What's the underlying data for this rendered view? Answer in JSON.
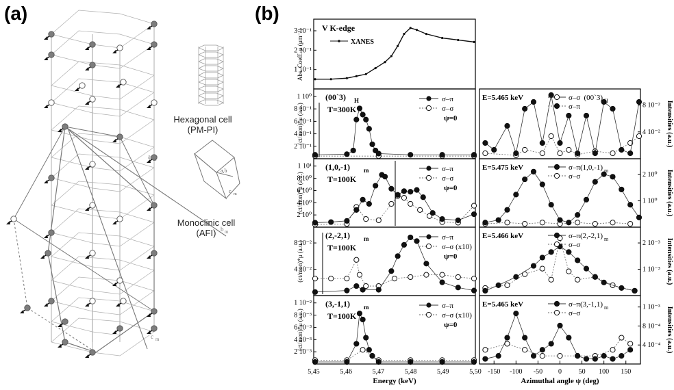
{
  "panel_a": {
    "letter": "(a)",
    "hexagonal_cell_label": [
      "Hexagonal cell",
      "(PM-PI)"
    ],
    "monoclinic_cell_label": [
      "Monoclinic cell",
      "(AFI)"
    ],
    "lattice_labels": {
      "a_m": "a",
      "b_m": "b",
      "c_m": "c",
      "sub": "m",
      "ab": "a,b",
      "cm": "c",
      "sub_m": "m"
    }
  },
  "panel_b": {
    "letter": "(b)",
    "xanes": {
      "title": "V K-edge",
      "legend": "XANES",
      "ylabel": "Abs. Coeff. μ (μm⁻¹)",
      "yticks": [
        "1 10⁻¹",
        "2 10⁻¹",
        "3 10⁻¹"
      ]
    },
    "energy_panels": [
      {
        "reflection": "(00`3)",
        "sub": "H",
        "temp": "T=300K",
        "legend": [
          "σ–π",
          "σ–σ",
          "ψ=0"
        ],
        "yticks": [
          "2 10⁻¹",
          "4 10⁻¹",
          "6 10⁻¹",
          "8 10⁻¹",
          "1 10⁰"
        ]
      },
      {
        "reflection": "(1,0,-1)",
        "sub": "m",
        "temp": "T=100K",
        "legend": [
          "σ–π",
          "σ–σ",
          "ψ=0"
        ],
        "yticks": [
          "2 10⁰",
          "4 10⁰",
          "6 10⁰",
          "8 10⁰",
          "1 10¹"
        ]
      },
      {
        "reflection": "(2,-2,1)",
        "sub": "m",
        "temp": "T=100K",
        "legend": [
          "σ–π",
          "σ–σ (x10)",
          "ψ=0"
        ],
        "yticks": [
          "4 10⁻²",
          "8 10⁻²"
        ]
      },
      {
        "reflection": "(3,-1,1)",
        "sub": "m",
        "temp": "T=100K",
        "legend": [
          "σ–π",
          "σ–σ (x10)",
          "ψ=0"
        ],
        "yticks": [
          "2 10⁻³",
          "4 10⁻³",
          "6 10⁻³",
          "8 10⁻³",
          "1 10⁻²"
        ]
      }
    ],
    "energy_ylabel": "(ct/mon)*μ (a.u.)",
    "energy_xlabel": "Energy (keV)",
    "energy_xticks": [
      "5,45",
      "5,46",
      "5,47",
      "5,48",
      "5,49",
      "5,50"
    ],
    "azimuthal_panels": [
      {
        "energy": "E=5.465 keV",
        "reflection": "(00`3)",
        "sub": "H",
        "legend": [
          "σ–σ",
          "σ–π"
        ],
        "yticks": [
          "4 10⁻²",
          "8 10⁻²"
        ]
      },
      {
        "energy": "E=5.475 keV",
        "reflection": "(1,0,-1)",
        "sub": "m",
        "legend": [
          "σ–π",
          "σ–σ"
        ],
        "yticks": [
          "1 10⁰",
          "2 10⁰"
        ]
      },
      {
        "energy": "E=5.466 keV",
        "reflection": "(2,-2,1)",
        "sub": "m",
        "legend": [
          "σ–π",
          "σ–σ"
        ],
        "yticks": [
          "1 10⁻³",
          "2 10⁻³"
        ]
      },
      {
        "energy": "E=5.465 keV",
        "reflection": "(3,-1,1)",
        "sub": "m",
        "legend": [
          "σ–π",
          "σ–σ"
        ],
        "yticks": [
          "4 10⁻⁴",
          "8 10⁻⁴",
          "1 10⁻³"
        ]
      }
    ],
    "azimuthal_ylabel": "Intensities (a.u.)",
    "azimuthal_xlabel": "Azimuthal angle ψ (deg)",
    "azimuthal_xticks": [
      "-150",
      "-100",
      "-50",
      "0",
      "50",
      "100",
      "150"
    ]
  },
  "chart_data": [
    {
      "type": "line",
      "title": "V K-edge",
      "series": [
        {
          "name": "XANES",
          "x": [
            5.45,
            5.455,
            5.46,
            5.463,
            5.466,
            5.469,
            5.472,
            5.474,
            5.476,
            5.478,
            5.48,
            5.482,
            5.485,
            5.49,
            5.495,
            5.5
          ],
          "y": [
            0.035,
            0.035,
            0.04,
            0.05,
            0.06,
            0.09,
            0.12,
            0.15,
            0.2,
            0.26,
            0.29,
            0.28,
            0.26,
            0.24,
            0.23,
            0.22
          ]
        }
      ],
      "xlim": [
        5.45,
        5.5
      ],
      "ylim": [
        0,
        0.32
      ]
    },
    {
      "type": "scatter",
      "reflection": "(00`3)H",
      "series": [
        {
          "name": "σ–π",
          "x": [
            5.45,
            5.46,
            5.462,
            5.463,
            5.464,
            5.465,
            5.466,
            5.467,
            5.468,
            5.469,
            5.47,
            5.48,
            5.49,
            5.5
          ],
          "y": [
            0.03,
            0.04,
            0.1,
            0.6,
            0.78,
            0.68,
            0.6,
            0.45,
            0.2,
            0.1,
            0.05,
            0.03,
            0.03,
            0.03
          ]
        },
        {
          "name": "σ–σ",
          "x": [
            5.45,
            5.47,
            5.49,
            5.5
          ],
          "y": [
            0.01,
            0.01,
            0.01,
            0.01
          ]
        }
      ],
      "xlim": [
        5.45,
        5.5
      ],
      "ylim": [
        0,
        1.05
      ]
    },
    {
      "type": "scatter",
      "reflection": "(1,0,-1)m",
      "series": [
        {
          "name": "σ–π",
          "x": [
            5.45,
            5.455,
            5.46,
            5.463,
            5.465,
            5.467,
            5.469,
            5.471,
            5.472,
            5.474,
            5.476,
            5.478,
            5.48,
            5.482,
            5.484,
            5.487,
            5.49,
            5.495,
            5.5
          ],
          "y": [
            0.4,
            0.5,
            0.7,
            2.5,
            4.2,
            3.5,
            6.5,
            8.3,
            8.0,
            6.0,
            5.0,
            5.6,
            5.5,
            5.8,
            4.6,
            2.0,
            1.0,
            0.8,
            1.8
          ]
        },
        {
          "name": "σ–σ",
          "x": [
            5.45,
            5.46,
            5.463,
            5.466,
            5.47,
            5.474,
            5.476,
            5.478,
            5.48,
            5.483,
            5.486,
            5.49,
            5.495,
            5.5
          ],
          "y": [
            0.1,
            0.2,
            3.0,
            1.0,
            0.8,
            3.5,
            4.8,
            4.5,
            3.5,
            2.5,
            1.5,
            0.5,
            0.4,
            3.2
          ]
        }
      ],
      "xlim": [
        5.45,
        5.5
      ],
      "ylim": [
        0,
        10.5
      ]
    },
    {
      "type": "scatter",
      "reflection": "(2,-2,1)m",
      "series": [
        {
          "name": "σ–π",
          "x": [
            5.45,
            5.46,
            5.463,
            5.465,
            5.47,
            5.474,
            5.476,
            5.478,
            5.48,
            5.482,
            5.485,
            5.49,
            5.495,
            5.5
          ],
          "y": [
            0.002,
            0.004,
            0.01,
            0.005,
            0.005,
            0.03,
            0.05,
            0.065,
            0.075,
            0.07,
            0.04,
            0.015,
            0.008,
            0.004
          ]
        },
        {
          "name": "σ–σ (x10)",
          "x": [
            5.45,
            5.455,
            5.46,
            5.463,
            5.464,
            5.466,
            5.47,
            5.475,
            5.48,
            5.485,
            5.49,
            5.495,
            5.5
          ],
          "y": [
            0.02,
            0.02,
            0.02,
            0.045,
            0.025,
            0.01,
            0.01,
            0.02,
            0.022,
            0.025,
            0.025,
            0.022,
            0.02
          ]
        }
      ],
      "xlim": [
        5.45,
        5.5
      ],
      "ylim": [
        0,
        0.085
      ]
    },
    {
      "type": "scatter",
      "reflection": "(3,-1,1)m",
      "series": [
        {
          "name": "σ–π",
          "x": [
            5.45,
            5.46,
            5.463,
            5.464,
            5.465,
            5.466,
            5.467,
            5.468,
            5.47,
            5.48,
            5.49,
            5.5
          ],
          "y": [
            0.0,
            0.0,
            0.003,
            0.008,
            0.007,
            0.004,
            0.002,
            0.001,
            0.0,
            0.0,
            0.0,
            0.0
          ]
        },
        {
          "name": "σ–σ (x10)",
          "x": [
            5.45,
            5.46,
            5.465,
            5.468,
            5.47,
            5.48,
            5.49,
            5.5
          ],
          "y": [
            0.0003,
            0.0003,
            0.002,
            0.001,
            0.0003,
            0.0003,
            0.0003,
            0.0003
          ]
        }
      ],
      "xlim": [
        5.45,
        5.5
      ],
      "ylim": [
        0,
        0.0105
      ]
    },
    {
      "type": "scatter",
      "energy": "E=5.465 keV",
      "reflection": "(00`3)H",
      "series": [
        {
          "name": "σ–π",
          "x": [
            -170,
            -150,
            -120,
            -100,
            -80,
            -60,
            -40,
            -20,
            0,
            20,
            40,
            60,
            80,
            100,
            120,
            140,
            160,
            180
          ],
          "y": [
            0.02,
            0.01,
            0.045,
            0.005,
            0.07,
            0.08,
            0.02,
            0.09,
            0.02,
            0.06,
            0.005,
            0.06,
            0.005,
            0.08,
            0.07,
            0.01,
            0.005,
            0.08
          ]
        },
        {
          "name": "σ–σ",
          "x": [
            -170,
            -100,
            -80,
            -40,
            -20,
            0,
            20,
            40,
            80,
            120,
            160,
            180
          ],
          "y": [
            0.005,
            0.002,
            0.01,
            0.005,
            0.03,
            0.005,
            0.01,
            0.003,
            0.008,
            0.005,
            0.02,
            0.03
          ]
        }
      ],
      "xlim": [
        -180,
        180
      ],
      "ylim": [
        0,
        0.095
      ]
    },
    {
      "type": "scatter",
      "energy": "E=5.475 keV",
      "reflection": "(1,0,-1)m",
      "series": [
        {
          "name": "σ–π",
          "x": [
            -170,
            -140,
            -120,
            -100,
            -80,
            -60,
            -40,
            -20,
            0,
            20,
            40,
            60,
            80,
            100,
            120,
            140,
            160,
            180
          ],
          "y": [
            0.1,
            0.2,
            0.6,
            1.2,
            1.8,
            2.1,
            1.6,
            0.8,
            0.2,
            0.1,
            0.4,
            1.0,
            1.7,
            2.0,
            1.9,
            1.4,
            0.8,
            0.3
          ]
        },
        {
          "name": "σ–σ",
          "x": [
            -170,
            -120,
            -80,
            -40,
            0,
            40,
            80,
            120,
            160
          ],
          "y": [
            0.05,
            0.1,
            0.05,
            0.1,
            0.05,
            0.1,
            0.05,
            0.1,
            0.05
          ]
        }
      ],
      "xlim": [
        -180,
        180
      ],
      "ylim": [
        0,
        2.5
      ]
    },
    {
      "type": "scatter",
      "energy": "E=5.466 keV",
      "reflection": "(2,-2,1)m",
      "series": [
        {
          "name": "σ–π",
          "x": [
            -170,
            -140,
            -100,
            -60,
            -40,
            -20,
            0,
            20,
            40,
            60,
            80,
            100,
            140,
            170
          ],
          "y": [
            0.0001,
            0.0003,
            0.0006,
            0.001,
            0.0013,
            0.0015,
            0.0017,
            0.0015,
            0.0012,
            0.0009,
            0.0006,
            0.0004,
            0.0002,
            0.0001
          ]
        },
        {
          "name": "σ–σ",
          "x": [
            -170,
            -120,
            -80,
            -40,
            -20,
            0,
            20,
            40,
            80,
            120,
            170
          ],
          "y": [
            0.0002,
            0.0003,
            0.0007,
            0.0009,
            0.0005,
            0.002,
            0.0008,
            0.0005,
            0.0006,
            0.0003,
            0.0001
          ]
        }
      ],
      "xlim": [
        -180,
        180
      ],
      "ylim": [
        0,
        0.0023
      ]
    },
    {
      "type": "scatter",
      "energy": "E=5.465 keV",
      "reflection": "(3,-1,1)m",
      "series": [
        {
          "name": "σ–π",
          "x": [
            -170,
            -140,
            -120,
            -100,
            -80,
            -60,
            -40,
            -20,
            0,
            20,
            40,
            60,
            80,
            100,
            120,
            140,
            160
          ],
          "y": [
            5e-05,
            0.0001,
            0.0004,
            0.0008,
            0.0004,
            0.0001,
            0.0002,
            0.0003,
            0.0006,
            0.0004,
            0.0001,
            5e-05,
            5e-05,
            0.0001,
            5e-05,
            0.0001,
            0.0002
          ]
        },
        {
          "name": "σ–σ",
          "x": [
            -170,
            -120,
            -80,
            -40,
            0,
            40,
            80,
            120,
            140,
            160
          ],
          "y": [
            0.0002,
            0.0003,
            0.0002,
            0.0001,
            0.0001,
            0.0001,
            0.0001,
            0.0002,
            0.0004,
            0.0003
          ]
        }
      ],
      "xlim": [
        -180,
        180
      ],
      "ylim": [
        0,
        0.00105
      ]
    }
  ]
}
